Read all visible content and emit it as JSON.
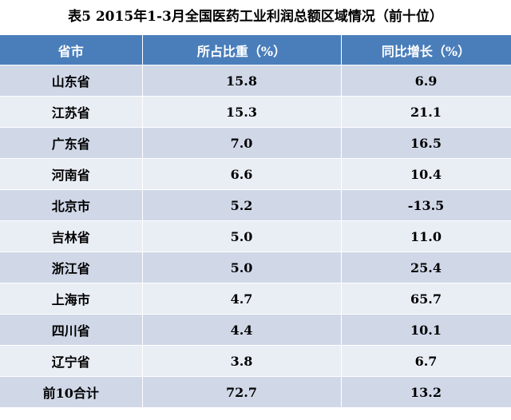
{
  "title": "表5  2015年1-3月全国医药工业利润总额区域情况（前十位）",
  "table": {
    "header": [
      "省市",
      "所占比重（%）",
      "同比增长（%）"
    ],
    "rows": [
      [
        "山东省",
        "15.8",
        "6.9"
      ],
      [
        "江苏省",
        "15.3",
        "21.1"
      ],
      [
        "广东省",
        "7.0",
        "16.5"
      ],
      [
        "河南省",
        "6.6",
        "10.4"
      ],
      [
        "北京市",
        "5.2",
        "-13.5"
      ],
      [
        "吉林省",
        "5.0",
        "11.0"
      ],
      [
        "浙江省",
        "5.0",
        "25.4"
      ],
      [
        "上海市",
        "4.7",
        "65.7"
      ],
      [
        "四川省",
        "4.4",
        "10.1"
      ],
      [
        "辽宁省",
        "3.8",
        "6.7"
      ],
      [
        "前10合计",
        "72.7",
        "13.2"
      ]
    ]
  }
}
